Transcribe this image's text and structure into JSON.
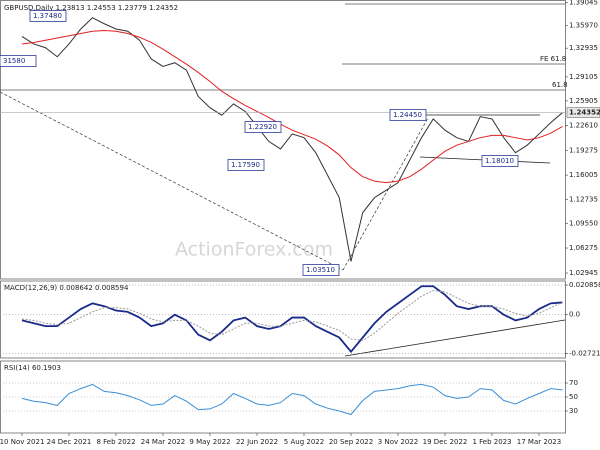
{
  "chart_data": [
    {
      "type": "line",
      "title": "GBPUSD,Daily 1.23813 1.24553 1.23779 1.24352",
      "categories": [
        "10 Nov 2021",
        null,
        null,
        null,
        "24 Dec 2021",
        null,
        null,
        null,
        "8 Feb 2022",
        null,
        null,
        null,
        "24 Mar 2022",
        null,
        null,
        null,
        "9 May 2022",
        null,
        null,
        null,
        "22 Jun 2022",
        null,
        null,
        null,
        "5 Aug 2022",
        null,
        null,
        null,
        "20 Sep 2022",
        null,
        null,
        null,
        "3 Nov 2022",
        null,
        null,
        null,
        "19 Dec 2022",
        null,
        null,
        null,
        "1 Feb 2023",
        null,
        null,
        null,
        "17 Mar 2023",
        null,
        null
      ],
      "series": [
        {
          "color": "#333333",
          "values": [
            1.345,
            1.335,
            1.33,
            1.318,
            1.335,
            1.355,
            1.37,
            1.362,
            1.355,
            1.352,
            1.34,
            1.315,
            1.305,
            1.31,
            1.3,
            1.265,
            1.25,
            1.24,
            1.255,
            1.245,
            1.225,
            1.205,
            1.195,
            1.215,
            1.21,
            1.19,
            1.16,
            1.13,
            1.045,
            1.11,
            1.13,
            1.14,
            1.15,
            1.18,
            1.21,
            1.235,
            1.22,
            1.21,
            1.205,
            1.238,
            1.235,
            1.21,
            1.19,
            1.2,
            1.215,
            1.23,
            1.2435
          ]
        },
        {
          "color": "#e02020",
          "values": [
            1.335,
            1.337,
            1.34,
            1.343,
            1.346,
            1.349,
            1.352,
            1.353,
            1.352,
            1.349,
            1.344,
            1.337,
            1.328,
            1.318,
            1.308,
            1.297,
            1.285,
            1.272,
            1.262,
            1.253,
            1.245,
            1.237,
            1.228,
            1.22,
            1.214,
            1.208,
            1.199,
            1.187,
            1.17,
            1.158,
            1.152,
            1.15,
            1.152,
            1.158,
            1.168,
            1.18,
            1.192,
            1.2,
            1.205,
            1.21,
            1.213,
            1.213,
            1.21,
            1.207,
            1.21,
            1.216,
            1.225
          ]
        }
      ],
      "ylim": [
        1.0228,
        1.391
      ],
      "yticks": [
        1.39045,
        {
          "value": 1.3597,
          "label": "1.35970"
        },
        1.32935,
        1.29105,
        1.25905,
        {
          "value": 1.2261,
          "label": "1.22610"
        },
        1.19275,
        1.16005,
        1.12735,
        {
          "value": 1.0955,
          "label": "1.09550"
        },
        1.06275,
        1.02945
      ],
      "last_price": 1.24352,
      "annotations": [
        "1.37480",
        "31580",
        "1.22920",
        "1.17590",
        "1.03510",
        "1.24450",
        "1.18010"
      ],
      "levels": [
        "FE 61.8",
        "61.8"
      ],
      "watermark": "ActionForex.com",
      "grid": false
    },
    {
      "type": "line",
      "title": "MACD(12,26,9) 0.008642 0.008594",
      "series": [
        {
          "color": "#1a2a8a",
          "values": [
            -0.004,
            -0.006,
            -0.008,
            -0.008,
            -0.002,
            0.004,
            0.008,
            0.006,
            0.003,
            0.002,
            -0.002,
            -0.008,
            -0.006,
            0.0,
            -0.004,
            -0.014,
            -0.018,
            -0.012,
            -0.004,
            -0.002,
            -0.008,
            -0.01,
            -0.008,
            -0.002,
            -0.002,
            -0.008,
            -0.012,
            -0.016,
            -0.026,
            -0.016,
            -0.006,
            0.002,
            0.008,
            0.014,
            0.02,
            0.02,
            0.014,
            0.006,
            0.004,
            0.006,
            0.006,
            0.0,
            -0.004,
            -0.002,
            0.004,
            0.008,
            0.008642
          ]
        },
        {
          "color": "#9a9a9a",
          "values": [
            -0.003,
            -0.004,
            -0.006,
            -0.007,
            -0.006,
            -0.002,
            0.002,
            0.005,
            0.005,
            0.004,
            0.001,
            -0.003,
            -0.005,
            -0.004,
            -0.004,
            -0.008,
            -0.013,
            -0.014,
            -0.01,
            -0.006,
            -0.006,
            -0.008,
            -0.008,
            -0.006,
            -0.004,
            -0.005,
            -0.008,
            -0.011,
            -0.017,
            -0.018,
            -0.013,
            -0.006,
            0.001,
            0.007,
            0.013,
            0.017,
            0.016,
            0.012,
            0.008,
            0.006,
            0.006,
            0.004,
            0.001,
            -0.001,
            0.001,
            0.005,
            0.008594
          ]
        }
      ],
      "ylim": [
        -0.029,
        0.023
      ],
      "yticks": [
        0.020858,
        {
          "value": 0,
          "label": "0.0"
        },
        -0.027213
      ],
      "grid": true
    },
    {
      "type": "line",
      "title": "RSI(14) 60.1903",
      "series": [
        {
          "color": "#3a8fd8",
          "values": [
            48,
            44,
            42,
            38,
            55,
            62,
            68,
            58,
            56,
            52,
            46,
            38,
            40,
            52,
            44,
            32,
            33,
            40,
            55,
            48,
            40,
            38,
            42,
            55,
            52,
            40,
            34,
            30,
            25,
            45,
            58,
            60,
            62,
            66,
            68,
            64,
            52,
            48,
            50,
            62,
            60,
            45,
            40,
            48,
            55,
            62,
            60.1903
          ]
        }
      ],
      "ylim": [
        0,
        100
      ],
      "yticks": [
        70,
        50,
        30
      ],
      "grid": true
    }
  ]
}
